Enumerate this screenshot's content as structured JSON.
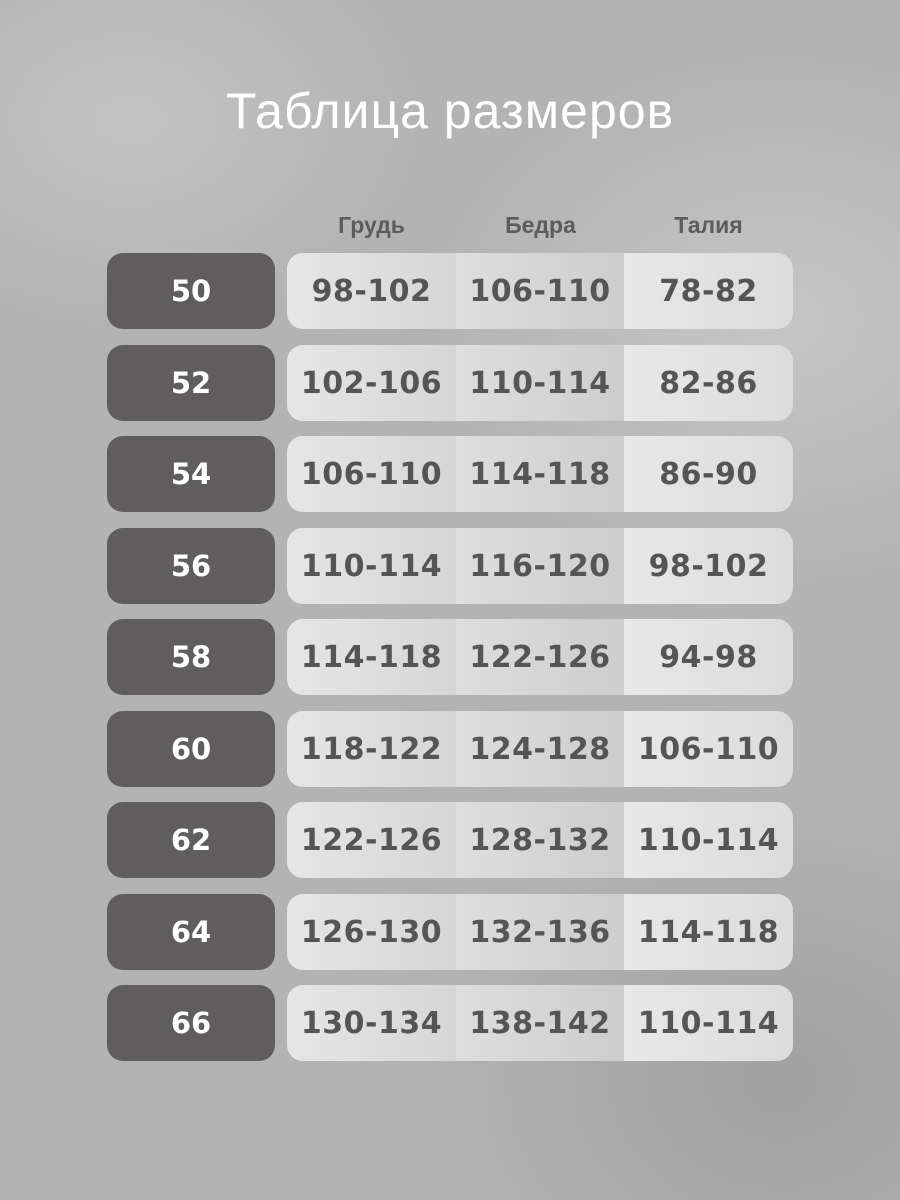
{
  "header": {
    "title": "Таблица размеров"
  },
  "table": {
    "columns": [
      "Грудь",
      "Бедра",
      "Талия"
    ],
    "rows": [
      [
        "50",
        "98-102",
        "106-110",
        "78-82"
      ],
      [
        "52",
        "102-106",
        "110-114",
        "82-86"
      ],
      [
        "54",
        "106-110",
        "114-118",
        "86-90"
      ],
      [
        "56",
        "110-114",
        "116-120",
        "98-102"
      ],
      [
        "58",
        "114-118",
        "122-126",
        "94-98"
      ],
      [
        "60",
        "118-122",
        "124-128",
        "106-110"
      ],
      [
        "62",
        "122-126",
        "128-132",
        "110-114"
      ],
      [
        "64",
        "126-130",
        "132-136",
        "114-118"
      ],
      [
        "66",
        "130-134",
        "138-142",
        "110-114"
      ]
    ]
  }
}
